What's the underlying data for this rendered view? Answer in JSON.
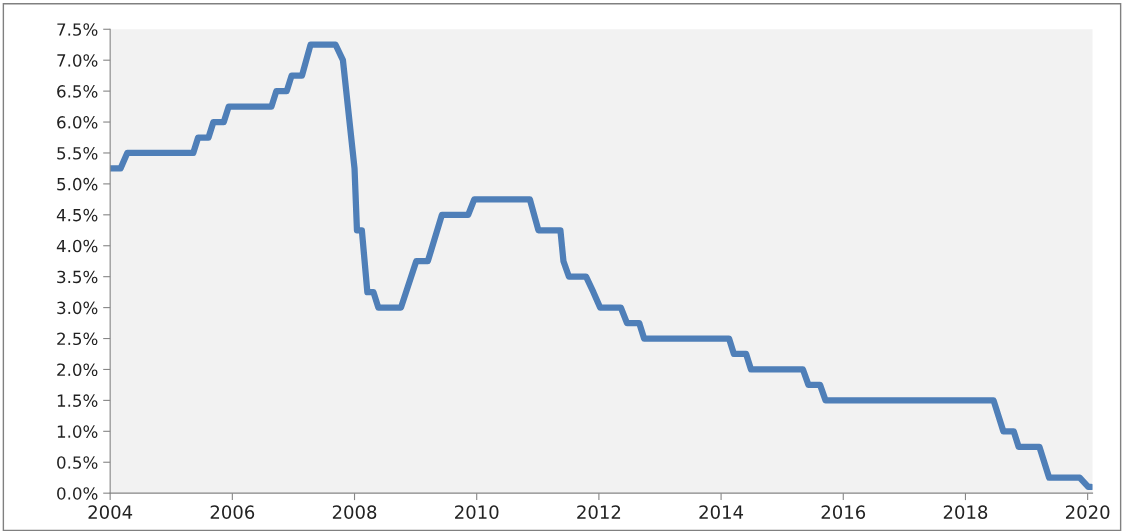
{
  "chart_data": {
    "type": "line",
    "x": [
      2004.0,
      2004.17,
      2004.28,
      2005.36,
      2005.44,
      2005.61,
      2005.69,
      2005.86,
      2005.94,
      2006.64,
      2006.72,
      2006.89,
      2006.97,
      2007.14,
      2007.28,
      2007.69,
      2007.81,
      2008.0,
      2008.04,
      2008.12,
      2008.21,
      2008.31,
      2008.39,
      2008.76,
      2009.01,
      2009.2,
      2009.43,
      2009.86,
      2009.96,
      2010.87,
      2011.01,
      2011.37,
      2011.42,
      2011.51,
      2011.79,
      2011.91,
      2012.02,
      2012.36,
      2012.46,
      2012.66,
      2012.74,
      2014.13,
      2014.21,
      2014.41,
      2014.49,
      2015.34,
      2015.43,
      2015.62,
      2015.71,
      2018.46,
      2018.62,
      2018.79,
      2018.87,
      2019.21,
      2019.37,
      2019.87,
      2020.01,
      2020.06
    ],
    "series": [
      {
        "color": "#4f7fb8",
        "values": [
          5.25,
          5.25,
          5.5,
          5.5,
          5.75,
          5.75,
          6.0,
          6.0,
          6.25,
          6.25,
          6.5,
          6.5,
          6.75,
          6.75,
          7.25,
          7.25,
          7.0,
          5.25,
          4.25,
          4.25,
          3.25,
          3.25,
          3.0,
          3.0,
          3.75,
          3.75,
          4.5,
          4.5,
          4.75,
          4.75,
          4.25,
          4.25,
          3.75,
          3.5,
          3.5,
          3.25,
          3.0,
          3.0,
          2.75,
          2.75,
          2.5,
          2.5,
          2.25,
          2.25,
          2.0,
          2.0,
          1.75,
          1.75,
          1.5,
          1.5,
          1.0,
          1.0,
          0.75,
          0.75,
          0.25,
          0.25,
          0.1,
          0.1
        ]
      }
    ],
    "xlim": [
      2004,
      2020.08
    ],
    "xticks": [
      2004,
      2006,
      2008,
      2010,
      2012,
      2014,
      2016,
      2018,
      2020
    ],
    "ylim": [
      0,
      7.5
    ],
    "yticks": [
      {
        "value": 0,
        "label": "0.0%"
      },
      {
        "value": 0.5,
        "label": "0.5%"
      },
      {
        "value": 1,
        "label": "1.0%"
      },
      {
        "value": 1.5,
        "label": "1.5%"
      },
      {
        "value": 2,
        "label": "2.0%"
      },
      {
        "value": 2.5,
        "label": "2.5%"
      },
      {
        "value": 3,
        "label": "3.0%"
      },
      {
        "value": 3.5,
        "label": "3.5%"
      },
      {
        "value": 4,
        "label": "4.0%"
      },
      {
        "value": 4.5,
        "label": "4.5%"
      },
      {
        "value": 5,
        "label": "5.0%"
      },
      {
        "value": 5.5,
        "label": "5.5%"
      },
      {
        "value": 6,
        "label": "6.0%"
      },
      {
        "value": 6.5,
        "label": "6.5%"
      },
      {
        "value": 7,
        "label": "7.0%"
      },
      {
        "value": 7.5,
        "label": "7.5%"
      }
    ],
    "grid": false,
    "marker": "none",
    "line_style": "solid"
  }
}
